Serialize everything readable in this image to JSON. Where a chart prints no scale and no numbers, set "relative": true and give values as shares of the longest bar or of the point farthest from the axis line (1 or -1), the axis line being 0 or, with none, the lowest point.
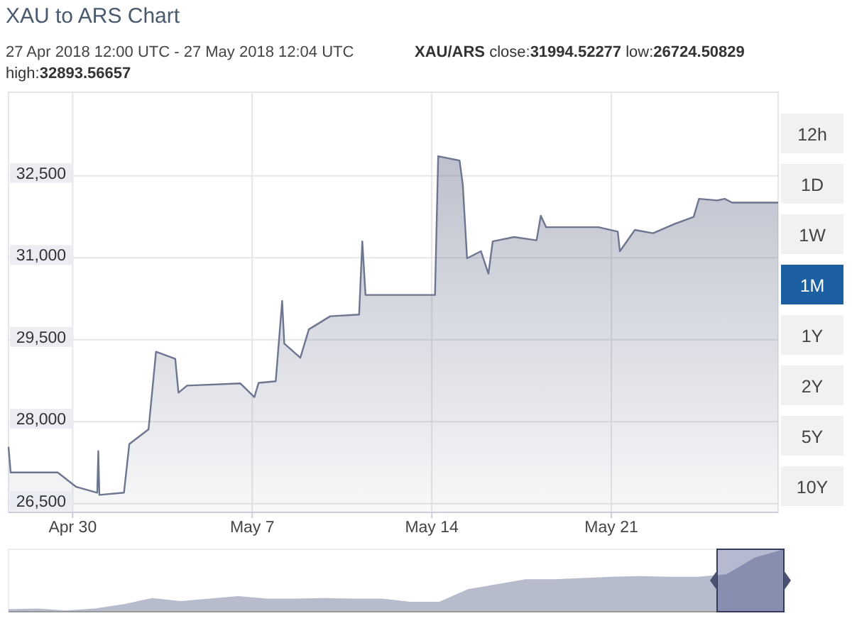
{
  "chart_data": [
    {
      "type": "area",
      "title": "XAU to ARS Chart",
      "subtitle": "27 Apr 2018 12:00 UTC - 27 May 2018 12:04 UTC",
      "annotations": [
        "XAU/ARS",
        "close:31994.52277",
        "low:26724.50829",
        "high:32893.56657",
        "12h",
        "1D",
        "1W",
        "1M",
        "1Y",
        "2Y",
        "5Y",
        "10Y"
      ],
      "x": [
        "2018-04-27T12:00",
        "2018-04-27T14:00",
        "2018-04-29T10:00",
        "2018-04-30T03:00",
        "2018-04-30T23:00",
        "2018-05-01T00:00",
        "2018-05-01T01:00",
        "2018-05-02T00:00",
        "2018-05-02T05:00",
        "2018-05-02T23:00",
        "2018-05-03T06:00",
        "2018-05-04T00:00",
        "2018-05-04T03:00",
        "2018-05-04T11:00",
        "2018-05-06T13:00",
        "2018-05-07T02:00",
        "2018-05-07T06:00",
        "2018-05-07T22:00",
        "2018-05-08T04:00",
        "2018-05-08T06:00",
        "2018-05-08T21:00",
        "2018-05-09T05:00",
        "2018-05-10T01:00",
        "2018-05-11T04:00",
        "2018-05-11T07:00",
        "2018-05-11T10:00",
        "2018-05-14T03:00",
        "2018-05-14T06:00",
        "2018-05-15T02:00",
        "2018-05-15T05:00",
        "2018-05-15T09:00",
        "2018-05-15T22:00",
        "2018-05-16T05:00",
        "2018-05-16T09:00",
        "2018-05-17T05:00",
        "2018-05-18T02:00",
        "2018-05-18T06:00",
        "2018-05-18T11:00",
        "2018-05-20T12:00",
        "2018-05-21T06:00",
        "2018-05-21T08:00",
        "2018-05-21T22:00",
        "2018-05-22T15:00",
        "2018-05-23T11:00",
        "2018-05-24T05:00",
        "2018-05-24T10:00",
        "2018-05-25T03:00",
        "2018-05-25T10:00",
        "2018-05-25T17:00",
        "2018-05-27T12:04"
      ],
      "series": [
        {
          "color": "#6e7590",
          "values": [
            27540,
            27070,
            27070,
            26810,
            26700,
            27460,
            26660,
            26700,
            27590,
            27860,
            29280,
            29150,
            28530,
            28660,
            28700,
            28450,
            28710,
            28740,
            30210,
            29430,
            29170,
            29690,
            29930,
            29960,
            31300,
            30320,
            30320,
            32860,
            32780,
            32340,
            30990,
            31120,
            30710,
            31300,
            31380,
            31320,
            31770,
            31560,
            31560,
            31480,
            31120,
            31510,
            31450,
            31620,
            31750,
            32080,
            32050,
            32080,
            32010,
            32010
          ]
        }
      ],
      "xlim": [
        "2018-04-27T12:00",
        "2018-05-27T12:04"
      ],
      "ylim": [
        26340,
        34030
      ],
      "xticks": [
        {
          "value": "2018-04-30",
          "label": "Apr 30"
        },
        {
          "value": "2018-05-07",
          "label": "May 7"
        },
        {
          "value": "2018-05-14",
          "label": "May 14"
        },
        {
          "value": "2018-05-21",
          "label": "May 21"
        }
      ],
      "yticks": [
        {
          "value": 26500,
          "label": "26,500"
        },
        {
          "value": 28000,
          "label": "28,000"
        },
        {
          "value": 29500,
          "label": "29,500"
        },
        {
          "value": 31000,
          "label": "31,000"
        },
        {
          "value": 32500,
          "label": "32,500"
        }
      ],
      "grid": true
    },
    {
      "type": "area",
      "relative": true,
      "color": "#b7bccd",
      "categories": [
        null,
        null,
        null,
        null,
        null,
        null,
        null,
        null,
        null,
        null,
        null,
        null,
        null,
        null,
        null,
        null,
        null,
        null,
        null,
        null,
        null,
        null,
        null,
        null,
        null,
        null,
        null,
        null
      ],
      "values": [
        0.04,
        0.05,
        0.02,
        0.05,
        0.12,
        0.22,
        0.17,
        0.21,
        0.25,
        0.21,
        0.21,
        0.22,
        0.21,
        0.21,
        0.16,
        0.16,
        0.36,
        0.44,
        0.52,
        0.52,
        0.54,
        0.56,
        0.57,
        0.56,
        0.56,
        0.6,
        0.87,
        1
      ]
    }
  ]
}
